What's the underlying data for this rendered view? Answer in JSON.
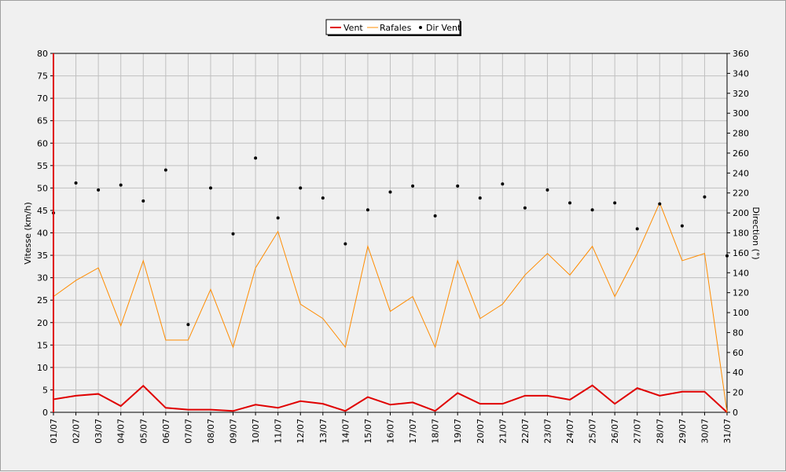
{
  "chart_data": {
    "type": "line",
    "title": "",
    "categories": [
      "01/07",
      "02/07",
      "03/07",
      "04/07",
      "05/07",
      "06/07",
      "07/07",
      "08/07",
      "09/07",
      "10/07",
      "11/07",
      "12/07",
      "13/07",
      "14/07",
      "15/07",
      "16/07",
      "17/07",
      "18/07",
      "19/07",
      "20/07",
      "21/07",
      "22/07",
      "23/07",
      "24/07",
      "25/07",
      "26/07",
      "27/07",
      "28/07",
      "29/07",
      "30/07",
      "31/07"
    ],
    "ylabel": "Vitesse (km/h)",
    "ylim": [
      0,
      80
    ],
    "yticks": [
      0,
      5,
      10,
      15,
      20,
      25,
      30,
      35,
      40,
      45,
      50,
      55,
      60,
      65,
      70,
      75,
      80
    ],
    "y2label": "Direction (°)",
    "y2lim": [
      0,
      360
    ],
    "y2ticks": [
      0,
      20,
      40,
      60,
      80,
      100,
      120,
      140,
      160,
      180,
      200,
      220,
      240,
      260,
      280,
      300,
      320,
      340,
      360
    ],
    "grid": true,
    "legend_position": "top-center",
    "series": [
      {
        "name": "Vent",
        "axis": "left",
        "kind": "line",
        "color": "#e00000",
        "values": [
          2.9,
          3.7,
          4.1,
          1.4,
          5.9,
          1.0,
          0.6,
          0.6,
          0.3,
          1.7,
          1.0,
          2.5,
          1.9,
          0.3,
          3.4,
          1.7,
          2.2,
          0.3,
          4.3,
          1.9,
          1.9,
          3.7,
          3.7,
          2.8,
          6.0,
          1.9,
          5.4,
          3.7,
          4.6,
          4.6,
          0.0
        ]
      },
      {
        "name": "Rafales",
        "axis": "left",
        "kind": "line",
        "color": "#ff8c00",
        "values": [
          25.8,
          29.4,
          32.2,
          19.3,
          33.8,
          16.1,
          16.1,
          27.4,
          14.5,
          32.2,
          40.3,
          24.1,
          20.9,
          14.5,
          37.0,
          22.5,
          25.8,
          14.5,
          33.8,
          20.9,
          24.1,
          30.6,
          35.4,
          30.6,
          37.0,
          25.8,
          35.4,
          46.7,
          33.8,
          35.4,
          0.0
        ]
      },
      {
        "name": "Dir Vent",
        "axis": "right",
        "kind": "scatter",
        "color": "#000000",
        "values": [
          200,
          230,
          223,
          228,
          212,
          243,
          88,
          225,
          179,
          255,
          195,
          225,
          215,
          169,
          203,
          221,
          227,
          197,
          227,
          215,
          229,
          205,
          223,
          210,
          203,
          210,
          184,
          209,
          187,
          216,
          157
        ]
      }
    ]
  }
}
